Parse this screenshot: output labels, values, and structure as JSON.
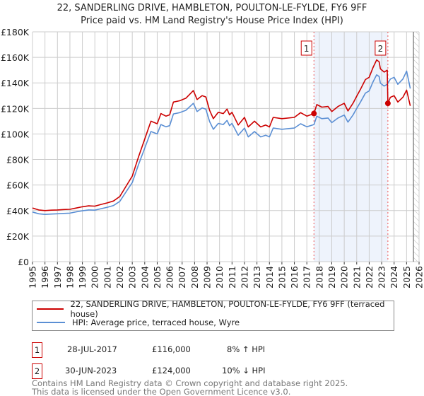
{
  "title_line1": "22, SANDERLING DRIVE, HAMBLETON, POULTON-LE-FYLDE, FY6 9FF",
  "title_line2": "Price paid vs. HM Land Registry's House Price Index (HPI)",
  "colors": {
    "property": "#cc0000",
    "hpi": "#5b8fd4",
    "band": "#eef3fc",
    "grid": "#cccccc"
  },
  "chart_data": {
    "type": "line",
    "title": "22, SANDERLING DRIVE, HAMBLETON, POULTON-LE-FYLDE, FY6 9FF — Price paid vs. HM Land Registry's House Price Index (HPI)",
    "xlim": [
      1995,
      2026
    ],
    "ylim": [
      0,
      180000
    ],
    "grid": true,
    "x_ticks": [
      "1995",
      "1996",
      "1997",
      "1998",
      "1999",
      "2000",
      "2001",
      "2002",
      "2003",
      "2004",
      "2005",
      "2006",
      "2007",
      "2008",
      "2009",
      "2010",
      "2011",
      "2012",
      "2013",
      "2014",
      "2015",
      "2016",
      "2017",
      "2018",
      "2019",
      "2020",
      "2021",
      "2022",
      "2023",
      "2024",
      "2025",
      "2026"
    ],
    "y_ticks": [
      {
        "v": 0,
        "label": "£0"
      },
      {
        "v": 20000,
        "label": "£20K"
      },
      {
        "v": 40000,
        "label": "£40K"
      },
      {
        "v": 60000,
        "label": "£60K"
      },
      {
        "v": 80000,
        "label": "£80K"
      },
      {
        "v": 100000,
        "label": "£100K"
      },
      {
        "v": 120000,
        "label": "£120K"
      },
      {
        "v": 140000,
        "label": "£140K"
      },
      {
        "v": 160000,
        "label": "£160K"
      },
      {
        "v": 180000,
        "label": "£180K"
      }
    ],
    "projection_start": 2025.55,
    "series": [
      {
        "name": "22, SANDERLING DRIVE, HAMBLETON, POULTON-LE-FYLDE, FY6 9FF (terraced house)",
        "color": "#cc0000",
        "points": [
          [
            1995,
            42000
          ],
          [
            1995.5,
            40500
          ],
          [
            1996,
            40000
          ],
          [
            1996.5,
            40300
          ],
          [
            1997,
            40500
          ],
          [
            1997.5,
            40800
          ],
          [
            1998,
            41000
          ],
          [
            1998.5,
            42000
          ],
          [
            1999,
            43000
          ],
          [
            1999.5,
            43700
          ],
          [
            2000,
            43500
          ],
          [
            2000.5,
            44800
          ],
          [
            2001,
            46000
          ],
          [
            2001.5,
            47500
          ],
          [
            2002,
            51000
          ],
          [
            2002.5,
            59000
          ],
          [
            2003,
            67000
          ],
          [
            2003.5,
            82000
          ],
          [
            2004,
            96000
          ],
          [
            2004.5,
            110000
          ],
          [
            2005,
            108000
          ],
          [
            2005.3,
            116000
          ],
          [
            2005.7,
            114000
          ],
          [
            2006,
            115000
          ],
          [
            2006.3,
            125000
          ],
          [
            2006.8,
            126000
          ],
          [
            2007.3,
            128000
          ],
          [
            2007.7,
            132000
          ],
          [
            2007.9,
            134000
          ],
          [
            2008.2,
            127000
          ],
          [
            2008.6,
            130000
          ],
          [
            2008.9,
            129000
          ],
          [
            2009.2,
            118500
          ],
          [
            2009.5,
            112000
          ],
          [
            2009.9,
            117000
          ],
          [
            2010.3,
            116000
          ],
          [
            2010.6,
            119500
          ],
          [
            2010.8,
            115000
          ],
          [
            2011,
            117000
          ],
          [
            2011.5,
            107000
          ],
          [
            2012,
            113000
          ],
          [
            2012.3,
            105500
          ],
          [
            2012.8,
            110000
          ],
          [
            2013.3,
            105500
          ],
          [
            2013.7,
            107000
          ],
          [
            2014,
            105500
          ],
          [
            2014.3,
            113000
          ],
          [
            2015,
            112000
          ],
          [
            2016,
            113000
          ],
          [
            2016.5,
            116700
          ],
          [
            2017,
            114000
          ],
          [
            2017.57,
            116000
          ],
          [
            2017.8,
            123000
          ],
          [
            2018.2,
            121000
          ],
          [
            2018.7,
            121500
          ],
          [
            2019,
            117600
          ],
          [
            2019.5,
            121500
          ],
          [
            2020,
            124000
          ],
          [
            2020.3,
            118000
          ],
          [
            2020.7,
            124000
          ],
          [
            2021,
            129600
          ],
          [
            2021.3,
            135000
          ],
          [
            2021.7,
            142600
          ],
          [
            2022,
            144400
          ],
          [
            2022.3,
            151800
          ],
          [
            2022.6,
            158000
          ],
          [
            2022.8,
            156500
          ],
          [
            2022.9,
            151000
          ],
          [
            2023.2,
            148500
          ],
          [
            2023.45,
            150000
          ],
          [
            2023.5,
            124000
          ],
          [
            2023.7,
            128700
          ],
          [
            2024,
            130000
          ],
          [
            2024.3,
            125000
          ],
          [
            2024.7,
            128700
          ],
          [
            2025,
            134300
          ],
          [
            2025.3,
            122000
          ]
        ]
      },
      {
        "name": "HPI: Average price, terraced house, Wyre",
        "color": "#5b8fd4",
        "points": [
          [
            1995,
            38900
          ],
          [
            1995.5,
            37500
          ],
          [
            1996,
            37000
          ],
          [
            1996.5,
            37300
          ],
          [
            1997,
            37500
          ],
          [
            1997.5,
            37800
          ],
          [
            1998,
            38000
          ],
          [
            1998.5,
            39000
          ],
          [
            1999,
            39800
          ],
          [
            1999.5,
            40500
          ],
          [
            2000,
            40300
          ],
          [
            2000.5,
            41500
          ],
          [
            2001,
            42600
          ],
          [
            2001.5,
            44000
          ],
          [
            2002,
            47200
          ],
          [
            2002.5,
            54600
          ],
          [
            2003,
            62000
          ],
          [
            2003.5,
            76000
          ],
          [
            2004,
            88900
          ],
          [
            2004.5,
            101900
          ],
          [
            2005,
            100000
          ],
          [
            2005.3,
            107400
          ],
          [
            2005.7,
            105600
          ],
          [
            2006,
            106500
          ],
          [
            2006.3,
            115700
          ],
          [
            2006.8,
            116700
          ],
          [
            2007.3,
            118500
          ],
          [
            2007.7,
            122200
          ],
          [
            2007.9,
            124000
          ],
          [
            2008.2,
            117600
          ],
          [
            2008.6,
            120400
          ],
          [
            2008.9,
            119400
          ],
          [
            2009.2,
            109700
          ],
          [
            2009.5,
            103700
          ],
          [
            2009.9,
            108300
          ],
          [
            2010.3,
            107400
          ],
          [
            2010.6,
            110600
          ],
          [
            2010.8,
            106500
          ],
          [
            2011,
            108300
          ],
          [
            2011.5,
            99000
          ],
          [
            2012,
            104600
          ],
          [
            2012.3,
            97700
          ],
          [
            2012.8,
            101900
          ],
          [
            2013.3,
            97700
          ],
          [
            2013.7,
            99000
          ],
          [
            2014,
            97700
          ],
          [
            2014.3,
            104600
          ],
          [
            2015,
            103700
          ],
          [
            2016,
            104600
          ],
          [
            2016.5,
            108000
          ],
          [
            2017,
            105600
          ],
          [
            2017.57,
            107400
          ],
          [
            2017.8,
            113900
          ],
          [
            2018.2,
            112000
          ],
          [
            2018.7,
            112500
          ],
          [
            2019,
            108900
          ],
          [
            2019.5,
            112500
          ],
          [
            2020,
            114800
          ],
          [
            2020.3,
            109300
          ],
          [
            2020.7,
            114800
          ],
          [
            2021,
            120000
          ],
          [
            2021.3,
            125000
          ],
          [
            2021.7,
            132000
          ],
          [
            2022,
            133700
          ],
          [
            2022.3,
            140600
          ],
          [
            2022.6,
            146300
          ],
          [
            2022.8,
            145000
          ],
          [
            2022.9,
            139800
          ],
          [
            2023.2,
            137500
          ],
          [
            2023.45,
            138900
          ],
          [
            2023.7,
            143000
          ],
          [
            2024,
            144400
          ],
          [
            2024.3,
            138900
          ],
          [
            2024.7,
            143000
          ],
          [
            2025,
            149200
          ],
          [
            2025.3,
            135600
          ]
        ]
      }
    ],
    "sales": [
      {
        "id": "1",
        "x": 2017.57,
        "y": 116000,
        "date": "28-JUL-2017",
        "price": "£116,000",
        "hpi_diff": "8% ↑ HPI"
      },
      {
        "id": "2",
        "x": 2023.5,
        "y": 124000,
        "date": "30-JUN-2023",
        "price": "£124,000",
        "hpi_diff": "10% ↓ HPI"
      }
    ]
  },
  "legend": {
    "property": "22, SANDERLING DRIVE, HAMBLETON, POULTON-LE-FYLDE, FY6 9FF (terraced house)",
    "hpi": "HPI: Average price, terraced house, Wyre"
  },
  "footer": {
    "line1": "Contains HM Land Registry data © Crown copyright and database right 2025.",
    "line2": "This data is licensed under the Open Government Licence v3.0."
  }
}
